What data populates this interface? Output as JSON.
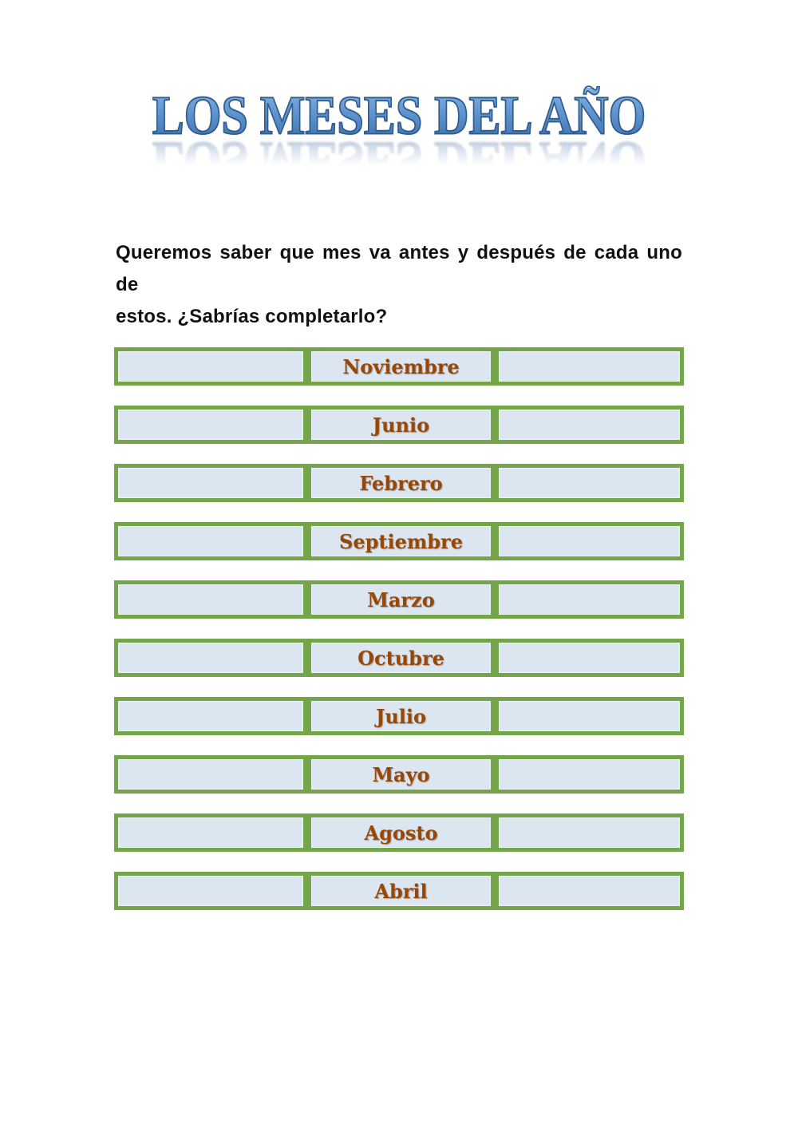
{
  "title": {
    "text": "LOS MESES DEL AÑO"
  },
  "instructions": {
    "line1": "Queremos saber que mes va antes y después de cada uno de",
    "line2": "estos. ¿Sabrías completarlo?"
  },
  "worksheet": {
    "months": [
      "Noviembre",
      "Junio",
      "Febrero",
      "Septiembre",
      "Marzo",
      "Octubre",
      "Julio",
      "Mayo",
      "Agosto",
      "Abril"
    ]
  },
  "colors": {
    "accent_green": "#75A54B",
    "cell_blue": "#DCE6F1",
    "month_brown": "#974706",
    "title_blue_light": "#86B1E0",
    "title_blue_mid": "#5E93CE",
    "title_blue_dark": "#3F6FA8",
    "title_outline": "#2E5C8F",
    "text_black": "#111111"
  }
}
